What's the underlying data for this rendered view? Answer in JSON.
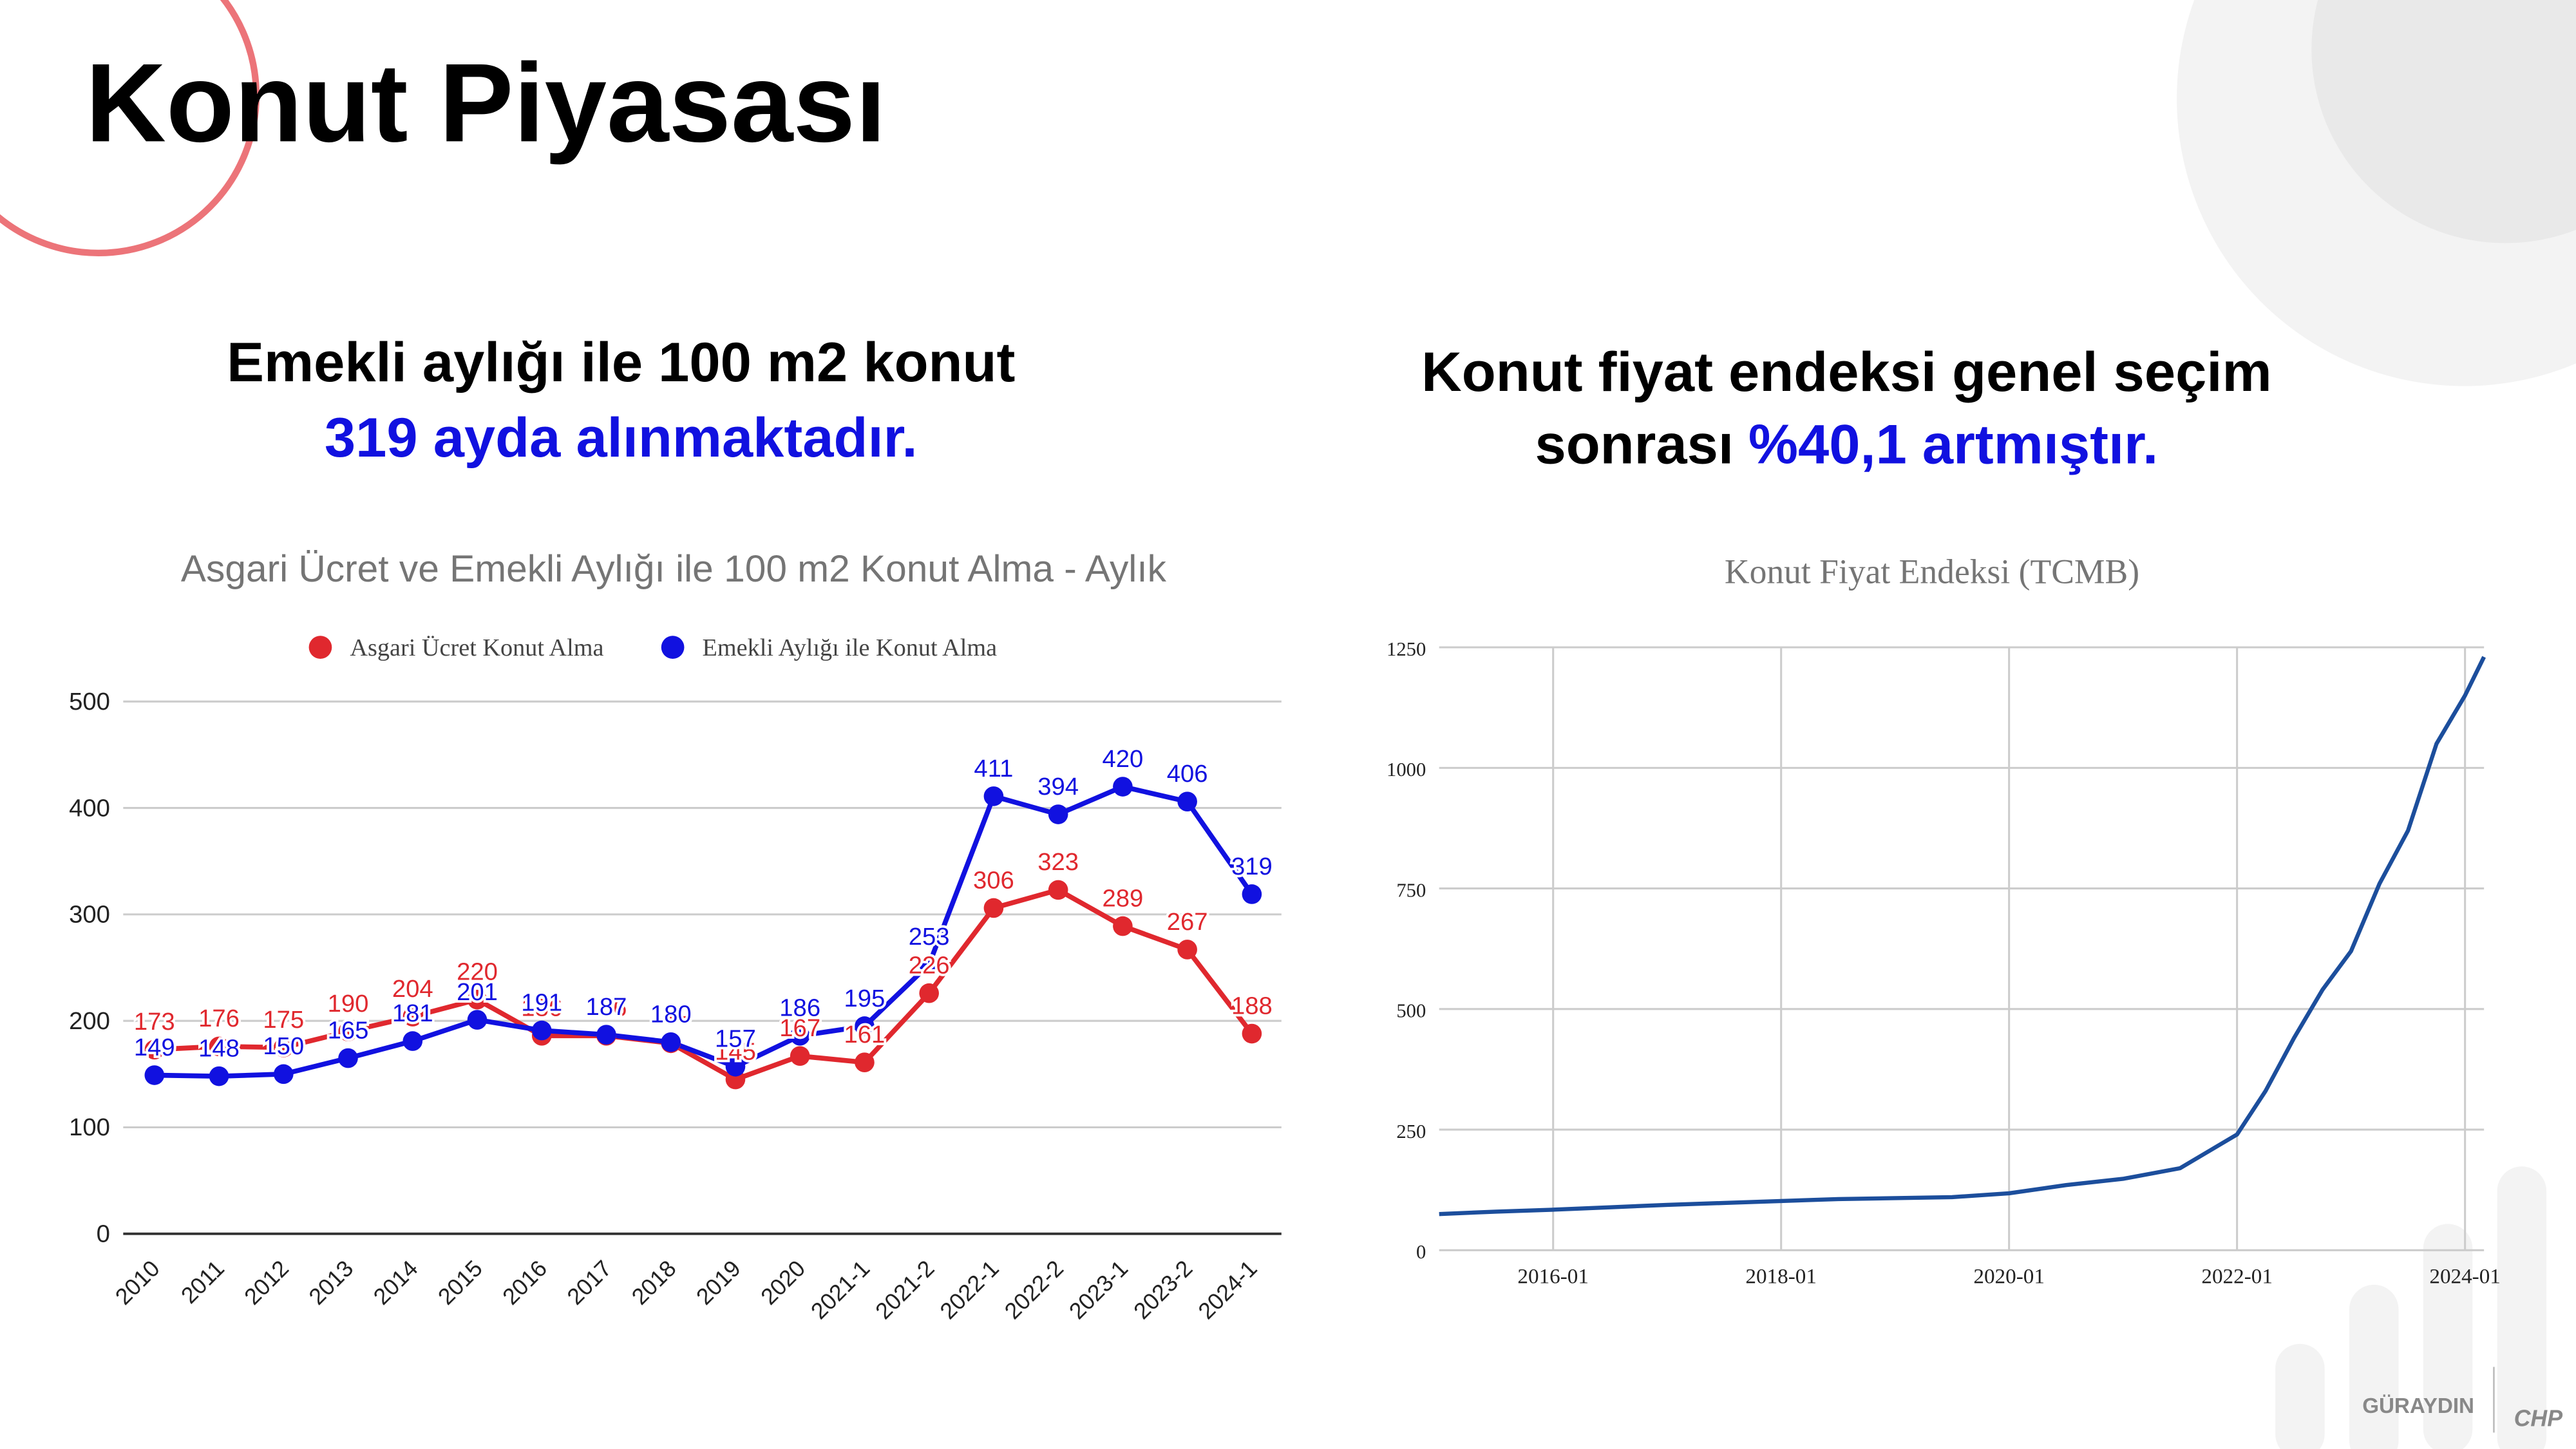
{
  "title": "Konut Piyasası",
  "left_heading": {
    "line1": "Emekli aylığı ile 100 m2 konut",
    "line2": "319 ayda alınmaktadır."
  },
  "right_heading": {
    "line1": "Konut fiyat endeksi genel seçim",
    "line2_start": "sonrası",
    "line2_highlight": "%40,1 artmıştır."
  },
  "logo": {
    "name": "GÜRAYDIN",
    "party": "CHP"
  },
  "chart_data": [
    {
      "type": "line",
      "title": "Asgari Ücret ve Emekli Aylığı ile 100 m2 Konut Alma - Aylık",
      "categories": [
        "2010",
        "2011",
        "2012",
        "2013",
        "2014",
        "2015",
        "2016",
        "2017",
        "2018",
        "2019",
        "2020",
        "2021-1",
        "2021-2",
        "2022-1",
        "2022-2",
        "2023-1",
        "2023-2",
        "2024-1"
      ],
      "series": [
        {
          "name": "Asgari Ücret Konut Alma",
          "color": "#e0282e",
          "values": [
            173,
            176,
            175,
            190,
            204,
            220,
            186,
            186,
            179,
            145,
            167,
            161,
            226,
            306,
            323,
            289,
            267,
            188
          ]
        },
        {
          "name": "Emekli Aylığı ile Konut Alma",
          "color": "#1111e0",
          "values": [
            149,
            148,
            150,
            165,
            181,
            201,
            191,
            187,
            180,
            157,
            186,
            195,
            253,
            411,
            394,
            420,
            406,
            319
          ]
        }
      ],
      "ylim": [
        0,
        500
      ],
      "yticks": [
        0,
        100,
        200,
        300,
        400,
        500
      ],
      "grid": true,
      "legend": "top"
    },
    {
      "type": "line",
      "title": "Konut Fiyat Endeksi (TCMB)",
      "color": "#1c4e9c",
      "x": [
        "2015-01",
        "2015-07",
        "2016-01",
        "2016-07",
        "2017-01",
        "2017-07",
        "2018-01",
        "2018-07",
        "2019-01",
        "2019-07",
        "2020-01",
        "2020-07",
        "2021-01",
        "2021-07",
        "2022-01",
        "2022-04",
        "2022-07",
        "2022-10",
        "2023-01",
        "2023-04",
        "2023-07",
        "2023-10",
        "2024-01",
        "2024-03"
      ],
      "values": [
        75,
        80,
        84,
        89,
        94,
        98,
        102,
        106,
        108,
        110,
        118,
        135,
        148,
        170,
        240,
        330,
        440,
        540,
        620,
        760,
        870,
        1050,
        1150,
        1230
      ],
      "xlim": [
        "2015-01",
        "2024-03"
      ],
      "xticks": [
        "2016-01",
        "2018-01",
        "2020-01",
        "2022-01",
        "2024-01"
      ],
      "ylim": [
        0,
        1250
      ],
      "yticks": [
        0,
        250,
        500,
        750,
        1000,
        1250
      ],
      "grid": true
    }
  ]
}
